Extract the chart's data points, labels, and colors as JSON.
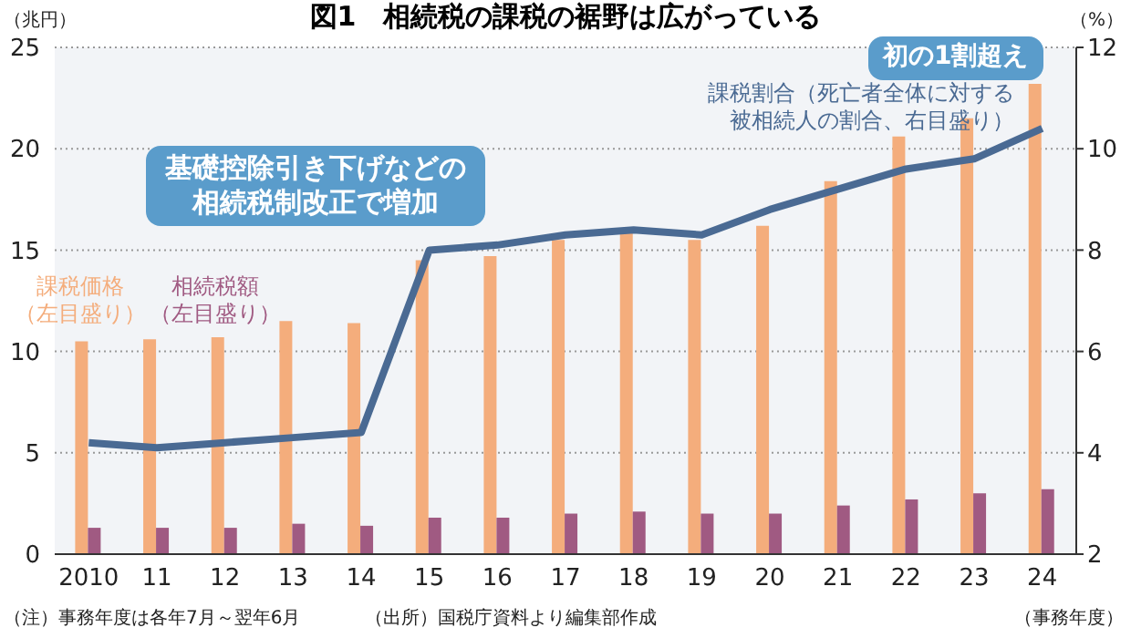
{
  "chart_data": {
    "type": "bar",
    "title": "図1　相続税の課税の裾野は広がっている",
    "ylabel": "（兆円）",
    "y2label": "（%）",
    "xlabel": "（事務年度）",
    "categories": [
      "2010",
      "11",
      "12",
      "13",
      "14",
      "15",
      "16",
      "17",
      "18",
      "19",
      "20",
      "21",
      "22",
      "23",
      "24"
    ],
    "series": [
      {
        "name": "課税価格（左目盛り）",
        "type": "bar",
        "color": "#f4ad7c",
        "values": [
          10.5,
          10.6,
          10.7,
          11.5,
          11.4,
          14.5,
          14.7,
          15.5,
          16.0,
          15.5,
          16.2,
          18.4,
          20.6,
          21.5,
          23.2
        ]
      },
      {
        "name": "相続税額（左目盛り）",
        "type": "bar",
        "color": "#a05a82",
        "values": [
          1.3,
          1.3,
          1.3,
          1.5,
          1.4,
          1.8,
          1.8,
          2.0,
          2.1,
          2.0,
          2.0,
          2.4,
          2.7,
          3.0,
          3.2
        ]
      },
      {
        "name": "課税割合（死亡者全体に対する被相続人の割合、右目盛り）",
        "type": "line",
        "axis": "y2",
        "color": "#4a6a93",
        "values": [
          4.2,
          4.1,
          4.2,
          4.3,
          4.4,
          8.0,
          8.1,
          8.3,
          8.4,
          8.3,
          8.8,
          9.2,
          9.6,
          9.8,
          10.4
        ]
      }
    ],
    "ylim": [
      0,
      25
    ],
    "yticks": [
      0,
      5,
      10,
      15,
      20,
      25
    ],
    "y2lim": [
      2,
      12
    ],
    "y2ticks": [
      2,
      4,
      6,
      8,
      10,
      12
    ],
    "grid": "y",
    "legend": false,
    "annotations": [
      "基礎控除引き下げなどの相続税制改正で増加",
      "初の1割超え",
      "（注）事務年度は各年7月～翌年6月",
      "（出所）国税庁資料より編集部作成"
    ]
  }
}
